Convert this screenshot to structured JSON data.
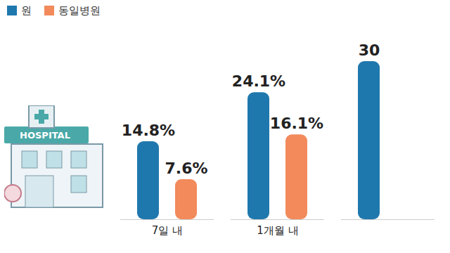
{
  "chart_data": {
    "type": "bar",
    "categories": [
      "7일 내",
      "1개월 내",
      null
    ],
    "series": [
      {
        "name": "원",
        "color": "#1f78ad",
        "values": [
          14.8,
          24.1,
          30
        ],
        "value_labels": [
          "14.8%",
          "24.1%",
          "30"
        ]
      },
      {
        "name": "동일병원",
        "color": "#f28a5b",
        "values": [
          7.6,
          16.1,
          null
        ],
        "value_labels": [
          "7.6%",
          "16.1%",
          null
        ]
      }
    ],
    "ylim": [
      0,
      32
    ],
    "data_labels": true,
    "tick_labels": "x",
    "legend": "top-left",
    "annotation": "HOSPITAL"
  }
}
